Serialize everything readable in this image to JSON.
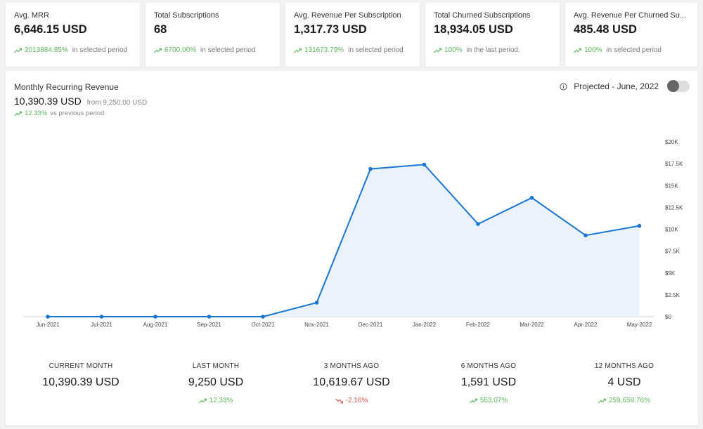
{
  "kpis": [
    {
      "label": "Avg. MRR",
      "value": "6,646.15 USD",
      "pct": "2013884.85%",
      "suffix": "in selected period",
      "trend": "up"
    },
    {
      "label": "Total Subscriptions",
      "value": "68",
      "pct": "6700.00%",
      "suffix": "in selected period",
      "trend": "up"
    },
    {
      "label": "Avg. Revenue Per Subscription",
      "value": "1,317.73 USD",
      "pct": "131673.79%",
      "suffix": "in selected period",
      "trend": "up"
    },
    {
      "label": "Total Churned Subscriptions",
      "value": "18,934.05 USD",
      "pct": "100%",
      "suffix": "in the last period.",
      "trend": "up"
    },
    {
      "label": "Avg. Revenue Per Churned Su...",
      "value": "485.48 USD",
      "pct": "100%",
      "suffix": "in selected period",
      "trend": "up"
    }
  ],
  "mrr": {
    "title": "Monthly Recurring Revenue",
    "value": "10,390.39 USD",
    "from": "from 9,250.00 USD",
    "trend_pct": "12.33%",
    "trend_suffix": "vs previous period"
  },
  "projected": {
    "label": "Projected - June, 2022",
    "enabled": false
  },
  "chart_data": {
    "type": "area",
    "categories": [
      "Jun-2021",
      "Jul-2021",
      "Aug-2021",
      "Sep-2021",
      "Oct-2021",
      "Nov-2021",
      "Dec-2021",
      "Jan-2022",
      "Feb-2022",
      "Mar-2022",
      "Apr-2022",
      "May-2022"
    ],
    "series": [
      {
        "values": [
          0,
          0,
          0,
          0,
          0,
          1600,
          16900,
          17400,
          10600,
          13600,
          9300,
          10390
        ]
      }
    ],
    "ylim": [
      0,
      20000
    ],
    "yticks": [
      0,
      2500,
      5000,
      7500,
      10000,
      12500,
      15000,
      17500,
      20000
    ],
    "ytick_labels": [
      "$0",
      "$2.5K",
      "$5K",
      "$7.5K",
      "$10K",
      "$12.5K",
      "$15K",
      "$17.5K",
      "$20K"
    ],
    "grid": false,
    "line_color": "#1976d2",
    "fill_color": "#eaf3fd"
  },
  "stats": [
    {
      "label": "CURRENT MONTH",
      "value": "10,390.39 USD",
      "change": "",
      "trend": "none"
    },
    {
      "label": "LAST MONTH",
      "value": "9,250 USD",
      "change": "12.33%",
      "trend": "up"
    },
    {
      "label": "3 MONTHS AGO",
      "value": "10,619.67 USD",
      "change": "-2.16%",
      "trend": "down"
    },
    {
      "label": "6 MONTHS AGO",
      "value": "1,591 USD",
      "change": "553.07%",
      "trend": "up"
    },
    {
      "label": "12 MONTHS AGO",
      "value": "4 USD",
      "change": "259,659.76%",
      "trend": "up"
    }
  ],
  "colors": {
    "up": "#5cb85c",
    "down": "#e05555",
    "accent": "#1976d2"
  }
}
